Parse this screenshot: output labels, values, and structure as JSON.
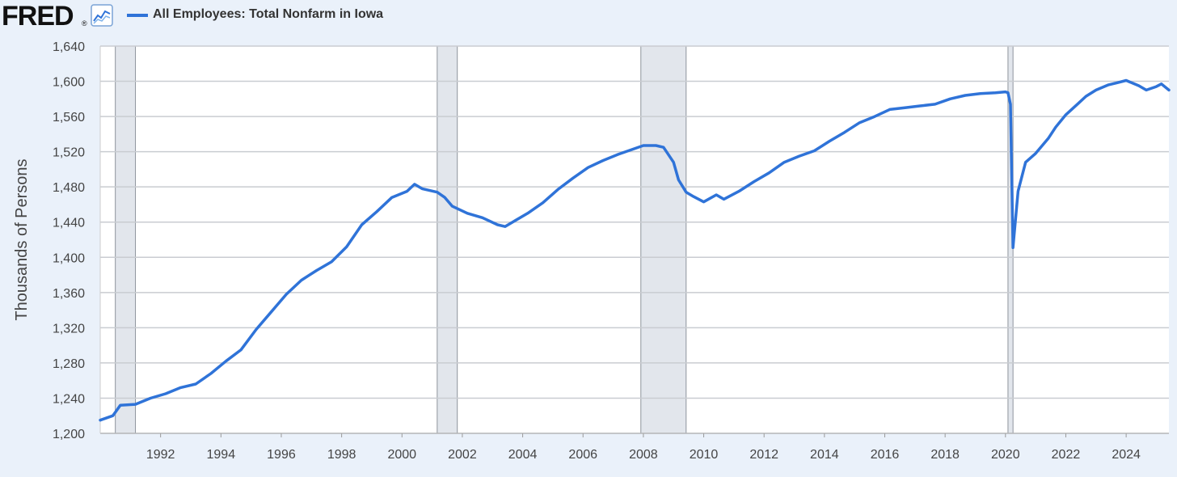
{
  "header": {
    "logo_text": "FRED",
    "logo_mark": "®",
    "logo_icon": "line-chart-icon",
    "series_color": "#2f73d8"
  },
  "chart_data": {
    "type": "line",
    "ylabel": "Thousands of Persons",
    "xlabel": "",
    "ylim": [
      1200,
      1640
    ],
    "yticks": [
      1200,
      1240,
      1280,
      1320,
      1360,
      1400,
      1440,
      1480,
      1520,
      1560,
      1600,
      1640
    ],
    "ytick_labels": [
      "1,200",
      "1,240",
      "1,280",
      "1,320",
      "1,360",
      "1,400",
      "1,440",
      "1,480",
      "1,520",
      "1,560",
      "1,600",
      "1,640"
    ],
    "xlim": [
      "1990-01",
      "2025-06"
    ],
    "xtick_labels": [
      "1992",
      "1994",
      "1996",
      "1998",
      "2000",
      "2002",
      "2004",
      "2006",
      "2008",
      "2010",
      "2012",
      "2014",
      "2016",
      "2018",
      "2020",
      "2022",
      "2024"
    ],
    "recessions": [
      {
        "start": "1990-07",
        "end": "1991-03"
      },
      {
        "start": "2001-03",
        "end": "2001-11"
      },
      {
        "start": "2007-12",
        "end": "2009-06"
      },
      {
        "start": "2020-02",
        "end": "2020-04"
      }
    ],
    "series": [
      {
        "name": "All Employees: Total Nonfarm in Iowa",
        "color": "#2f73d8",
        "points": [
          [
            "1990-01",
            1215
          ],
          [
            "1990-06",
            1220
          ],
          [
            "1990-09",
            1232
          ],
          [
            "1991-03",
            1233
          ],
          [
            "1991-09",
            1240
          ],
          [
            "1992-03",
            1245
          ],
          [
            "1992-09",
            1252
          ],
          [
            "1993-03",
            1256
          ],
          [
            "1993-09",
            1268
          ],
          [
            "1994-03",
            1282
          ],
          [
            "1994-09",
            1295
          ],
          [
            "1995-03",
            1318
          ],
          [
            "1995-09",
            1338
          ],
          [
            "1996-03",
            1358
          ],
          [
            "1996-09",
            1374
          ],
          [
            "1997-03",
            1385
          ],
          [
            "1997-09",
            1395
          ],
          [
            "1998-03",
            1412
          ],
          [
            "1998-09",
            1437
          ],
          [
            "1999-03",
            1452
          ],
          [
            "1999-09",
            1468
          ],
          [
            "2000-03",
            1475
          ],
          [
            "2000-06",
            1483
          ],
          [
            "2000-09",
            1478
          ],
          [
            "2001-03",
            1474
          ],
          [
            "2001-06",
            1468
          ],
          [
            "2001-09",
            1458
          ],
          [
            "2002-03",
            1450
          ],
          [
            "2002-09",
            1445
          ],
          [
            "2003-03",
            1437
          ],
          [
            "2003-06",
            1435
          ],
          [
            "2003-09",
            1440
          ],
          [
            "2004-03",
            1450
          ],
          [
            "2004-09",
            1462
          ],
          [
            "2005-03",
            1477
          ],
          [
            "2005-09",
            1490
          ],
          [
            "2006-03",
            1502
          ],
          [
            "2006-09",
            1510
          ],
          [
            "2007-03",
            1517
          ],
          [
            "2007-09",
            1523
          ],
          [
            "2008-01",
            1527
          ],
          [
            "2008-06",
            1527
          ],
          [
            "2008-09",
            1525
          ],
          [
            "2009-01",
            1508
          ],
          [
            "2009-03",
            1488
          ],
          [
            "2009-06",
            1474
          ],
          [
            "2009-09",
            1469
          ],
          [
            "2010-01",
            1463
          ],
          [
            "2010-06",
            1471
          ],
          [
            "2010-09",
            1466
          ],
          [
            "2011-03",
            1475
          ],
          [
            "2011-09",
            1486
          ],
          [
            "2012-03",
            1496
          ],
          [
            "2012-09",
            1508
          ],
          [
            "2013-03",
            1515
          ],
          [
            "2013-09",
            1521
          ],
          [
            "2014-03",
            1532
          ],
          [
            "2014-09",
            1542
          ],
          [
            "2015-03",
            1553
          ],
          [
            "2015-09",
            1560
          ],
          [
            "2016-03",
            1568
          ],
          [
            "2016-09",
            1570
          ],
          [
            "2017-03",
            1572
          ],
          [
            "2017-09",
            1574
          ],
          [
            "2018-03",
            1580
          ],
          [
            "2018-09",
            1584
          ],
          [
            "2019-03",
            1586
          ],
          [
            "2019-09",
            1587
          ],
          [
            "2020-01",
            1588
          ],
          [
            "2020-02",
            1587
          ],
          [
            "2020-03",
            1574
          ],
          [
            "2020-04",
            1411
          ],
          [
            "2020-06",
            1475
          ],
          [
            "2020-09",
            1508
          ],
          [
            "2021-01",
            1518
          ],
          [
            "2021-06",
            1535
          ],
          [
            "2021-09",
            1548
          ],
          [
            "2022-01",
            1562
          ],
          [
            "2022-06",
            1575
          ],
          [
            "2022-09",
            1583
          ],
          [
            "2023-01",
            1590
          ],
          [
            "2023-06",
            1596
          ],
          [
            "2023-09",
            1598
          ],
          [
            "2024-01",
            1601
          ],
          [
            "2024-06",
            1595
          ],
          [
            "2024-09",
            1590
          ],
          [
            "2025-01",
            1594
          ],
          [
            "2025-03",
            1597
          ],
          [
            "2025-06",
            1590
          ]
        ]
      }
    ]
  }
}
